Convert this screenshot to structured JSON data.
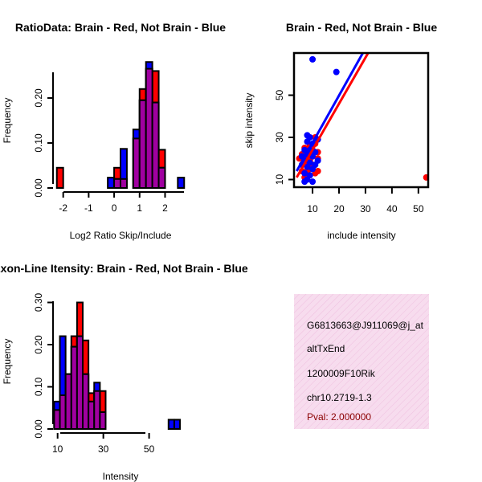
{
  "colors": {
    "red": "#ff0000",
    "blue": "#0000ff",
    "overlap": "#a000a0",
    "annotation_bg": "#f7dcee",
    "pval": "#8b0000"
  },
  "chart_data": [
    {
      "id": "ratio-hist",
      "type": "bar",
      "title": "RatioData: Brain - Red, Not Brain - Blue",
      "xlabel": "Log2 Ratio Skip/Include",
      "ylabel": "Frequency",
      "xlim": [
        -2.4,
        2.9
      ],
      "ylim": [
        0,
        0.3
      ],
      "xticks": [
        -2,
        -1,
        0,
        1,
        2
      ],
      "xtick_labels": [
        "-2",
        "-1",
        "0",
        "1",
        "2"
      ],
      "yticks": [
        0,
        0.1,
        0.2
      ],
      "ytick_labels": [
        "0.00",
        "0.10",
        "0.20"
      ],
      "bin_width": 0.25,
      "series": [
        {
          "name": "Brain",
          "color": "red",
          "bins": [
            [
              -2.25,
              0.045
            ],
            [
              0.0,
              0.045
            ],
            [
              0.25,
              0.02
            ],
            [
              0.75,
              0.11
            ],
            [
              1.0,
              0.22
            ],
            [
              1.25,
              0.265
            ],
            [
              1.5,
              0.26
            ],
            [
              1.75,
              0.085
            ]
          ]
        },
        {
          "name": "Not Brain",
          "color": "blue",
          "bins": [
            [
              -0.25,
              0.023
            ],
            [
              0.0,
              0.02
            ],
            [
              0.25,
              0.087
            ],
            [
              0.75,
              0.13
            ],
            [
              1.0,
              0.195
            ],
            [
              1.25,
              0.28
            ],
            [
              1.5,
              0.19
            ],
            [
              1.75,
              0.045
            ],
            [
              2.5,
              0.023
            ]
          ]
        }
      ]
    },
    {
      "id": "intensity-scatter",
      "type": "scatter",
      "title": "Brain - Red, Not Brain - Blue",
      "xlabel": "include intensity",
      "ylabel": "skip intensity",
      "xlim": [
        3,
        54
      ],
      "ylim": [
        6,
        70
      ],
      "xticks": [
        10,
        20,
        30,
        40,
        50
      ],
      "xtick_labels": [
        "10",
        "20",
        "30",
        "40",
        "50"
      ],
      "yticks": [
        10,
        30,
        50
      ],
      "ytick_labels": [
        "10",
        "30",
        "50"
      ],
      "series": [
        {
          "name": "Brain",
          "color": "red",
          "points": [
            [
              5,
              20
            ],
            [
              6,
              22
            ],
            [
              7,
              18
            ],
            [
              7,
              25
            ],
            [
              8,
              14
            ],
            [
              8,
              20
            ],
            [
              8,
              23
            ],
            [
              9,
              15
            ],
            [
              9,
              19
            ],
            [
              9,
              26
            ],
            [
              10,
              17
            ],
            [
              10,
              21
            ],
            [
              10,
              24
            ],
            [
              11,
              30
            ],
            [
              11,
              13
            ],
            [
              11,
              27
            ],
            [
              12,
              20
            ],
            [
              12,
              23
            ],
            [
              12,
              14
            ],
            [
              6,
              14
            ],
            [
              7,
              11
            ],
            [
              53,
              11
            ]
          ],
          "fit": [
            [
              4,
              11
            ],
            [
              31,
              70
            ]
          ]
        },
        {
          "name": "Not Brain",
          "color": "blue",
          "points": [
            [
              6,
              17
            ],
            [
              6,
              21
            ],
            [
              7,
              13
            ],
            [
              7,
              19
            ],
            [
              7,
              24
            ],
            [
              8,
              10
            ],
            [
              8,
              16
            ],
            [
              8,
              22
            ],
            [
              8,
              28
            ],
            [
              8,
              31
            ],
            [
              9,
              12
            ],
            [
              9,
              18
            ],
            [
              9,
              24
            ],
            [
              9,
              30
            ],
            [
              10,
              15
            ],
            [
              10,
              21
            ],
            [
              10,
              27
            ],
            [
              11,
              17
            ],
            [
              11,
              23
            ],
            [
              12,
              19
            ],
            [
              12,
              29
            ],
            [
              7,
              9
            ],
            [
              10,
              9
            ],
            [
              10,
              67
            ],
            [
              19,
              61
            ]
          ],
          "fit": [
            [
              4,
              14
            ],
            [
              29,
              70
            ]
          ]
        }
      ]
    },
    {
      "id": "intensity-hist",
      "type": "bar",
      "title": "Exon-Line Itensity: Brain - Red, Not Brain - Blue",
      "xlabel": "Intensity",
      "ylabel": "Frequency",
      "xlim": [
        8,
        67
      ],
      "ylim": [
        0,
        0.32
      ],
      "xticks": [
        10,
        30,
        50
      ],
      "xtick_labels": [
        "10",
        "30",
        "50"
      ],
      "yticks": [
        0,
        0.1,
        0.2,
        0.3
      ],
      "ytick_labels": [
        "0.00",
        "0.10",
        "0.20",
        "0.30"
      ],
      "bin_width": 2.5,
      "series": [
        {
          "name": "Brain",
          "color": "red",
          "bins": [
            [
              8.5,
              0.045
            ],
            [
              11,
              0.08
            ],
            [
              13.5,
              0.13
            ],
            [
              16,
              0.22
            ],
            [
              18.5,
              0.3
            ],
            [
              21,
              0.21
            ],
            [
              23.5,
              0.085
            ],
            [
              26,
              0.09
            ],
            [
              28.5,
              0.09
            ]
          ]
        },
        {
          "name": "Not Brain",
          "color": "blue",
          "bins": [
            [
              8.5,
              0.065
            ],
            [
              11,
              0.22
            ],
            [
              13.5,
              0.13
            ],
            [
              16,
              0.195
            ],
            [
              18.5,
              0.22
            ],
            [
              21,
              0.13
            ],
            [
              23.5,
              0.065
            ],
            [
              26,
              0.11
            ],
            [
              28.5,
              0.04
            ],
            [
              58.5,
              0.022
            ],
            [
              61,
              0.022
            ]
          ]
        }
      ]
    }
  ],
  "annotation": {
    "probe_id": "G6813663@J911069@j_at",
    "event_type": "altTxEnd",
    "gene_name": "1200009F10Rik",
    "location": "chr10.2719-1.3",
    "pval": "Pval: 2.000000"
  }
}
